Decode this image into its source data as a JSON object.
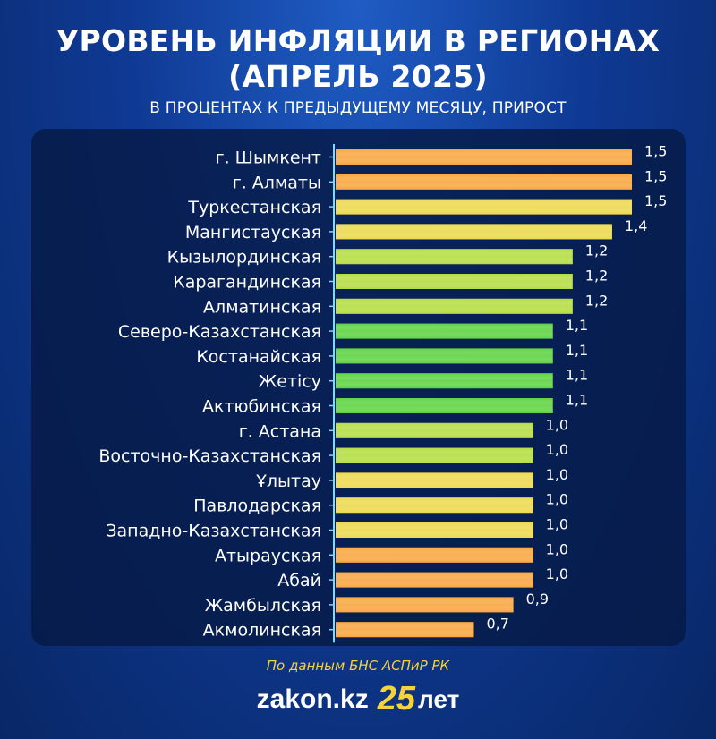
{
  "header": {
    "title_line1": "УРОВЕНЬ ИНФЛЯЦИИ В РЕГИОНАХ",
    "title_line2": "(АПРЕЛЬ 2025)",
    "subtitle": "В ПРОЦЕНТАХ К ПРЕДЫДУЩЕМУ МЕСЯЦУ, ПРИРОСТ"
  },
  "footer": {
    "source": "По данным БНС АСПиР РК",
    "brand_name": "zakon.kz",
    "brand_badge": "25",
    "brand_years": "лет"
  },
  "chart_data": {
    "type": "bar",
    "orientation": "horizontal",
    "title": "УРОВЕНЬ ИНФЛЯЦИИ В РЕГИОНАХ (АПРЕЛЬ 2025)",
    "subtitle": "В ПРОЦЕНТАХ К ПРЕДЫДУЩЕМУ МЕСЯЦУ, ПРИРОСТ",
    "categories": [
      "г. Шымкент",
      "г. Алматы",
      "Туркестанская",
      "Мангистауская",
      "Кызылординская",
      "Карагандинская",
      "Алматинская",
      "Северо-Казахстанская",
      "Костанайская",
      "Жетісу",
      "Актюбинская",
      "г. Астана",
      "Восточно-Казахстанская",
      "Ұлытау",
      "Павлодарская",
      "Западно-Казахстанская",
      "Атырауская",
      "Абай",
      "Жамбылская",
      "Акмолинская"
    ],
    "values": [
      1.5,
      1.5,
      1.5,
      1.4,
      1.2,
      1.2,
      1.2,
      1.1,
      1.1,
      1.1,
      1.1,
      1.0,
      1.0,
      1.0,
      1.0,
      1.0,
      1.0,
      1.0,
      0.9,
      0.7
    ],
    "value_labels": [
      "1,5",
      "1,5",
      "1,5",
      "1,4",
      "1,2",
      "1,2",
      "1,2",
      "1,1",
      "1,1",
      "1,1",
      "1,1",
      "1,0",
      "1,0",
      "1,0",
      "1,0",
      "1,0",
      "1,0",
      "1,0",
      "0,9",
      "0,7"
    ],
    "xlim": [
      0,
      1.5
    ],
    "grid": false,
    "legend": "none",
    "colors": {
      "orange": "#f7a43c",
      "yellow": "#ecd84a",
      "lightgreen": "#b3dc3e",
      "green": "#5bd23e",
      "axis": "#7fd8ff"
    },
    "bar_colors": [
      "orange",
      "orange",
      "yellow",
      "yellow",
      "lightgreen",
      "lightgreen",
      "lightgreen",
      "green",
      "green",
      "green",
      "green",
      "lightgreen",
      "lightgreen",
      "yellow",
      "yellow",
      "yellow",
      "orange",
      "orange",
      "orange",
      "orange"
    ]
  }
}
